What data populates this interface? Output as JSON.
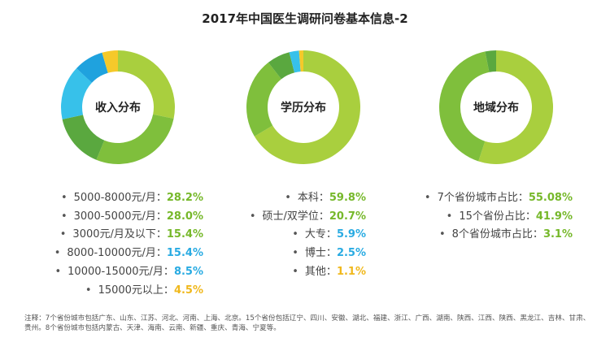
{
  "title": "2017年中国医生调研问卷基本信息-2",
  "chart_data": [
    {
      "type": "pie",
      "title": "收入分布",
      "categories": [
        "5000-8000元/月",
        "3000-5000元/月",
        "3000元/月及以下",
        "8000-10000元/月",
        "10000-15000元/月",
        "15000元以上"
      ],
      "values": [
        28.2,
        28.0,
        15.4,
        15.4,
        8.5,
        4.5
      ],
      "value_labels": [
        "28.2%",
        "28.0%",
        "15.4%",
        "15.4%",
        "8.5%",
        "4.5%"
      ],
      "colors": [
        "#a9cf3e",
        "#7fbf3c",
        "#5aa83f",
        "#37c1ea",
        "#1fa2de",
        "#f5c92a"
      ],
      "label_colors": [
        "#76b82a",
        "#76b82a",
        "#76b82a",
        "#29abe2",
        "#29abe2",
        "#f0b81c"
      ]
    },
    {
      "type": "pie",
      "title": "学历分布",
      "categories": [
        "本科",
        "硕士/双学位",
        "大专",
        "博士",
        "其他"
      ],
      "values": [
        59.8,
        20.7,
        5.9,
        2.5,
        1.1
      ],
      "value_labels": [
        "59.8%",
        "20.7%",
        "5.9%",
        "2.5%",
        "1.1%"
      ],
      "colors": [
        "#a9cf3e",
        "#7fbf3c",
        "#5aa83f",
        "#37c1ea",
        "#f5c92a"
      ],
      "label_colors": [
        "#76b82a",
        "#76b82a",
        "#29abe2",
        "#29abe2",
        "#f0b81c"
      ]
    },
    {
      "type": "pie",
      "title": "地域分布",
      "categories": [
        "7个省份城市占比",
        "15个省份占比",
        "8个省份城市占比"
      ],
      "values": [
        55.08,
        41.9,
        3.1
      ],
      "value_labels": [
        "55.08%",
        "41.9%",
        "3.1%"
      ],
      "colors": [
        "#a9cf3e",
        "#7fbf3c",
        "#5aa83f"
      ],
      "label_colors": [
        "#76b82a",
        "#76b82a",
        "#76b82a"
      ]
    }
  ],
  "footnote": "注释：7个省份城市包括广东、山东、江苏、河北、河南、上海、北京。15个省份包括辽宁、四川、安徽、湖北、福建、浙江、广西、湖南、陕西、江西、陕西、黑龙江、吉林、甘肃、贵州。8个省份城市包括内蒙古、天津、海南、云南、新疆、重庆、青海、宁夏等。"
}
